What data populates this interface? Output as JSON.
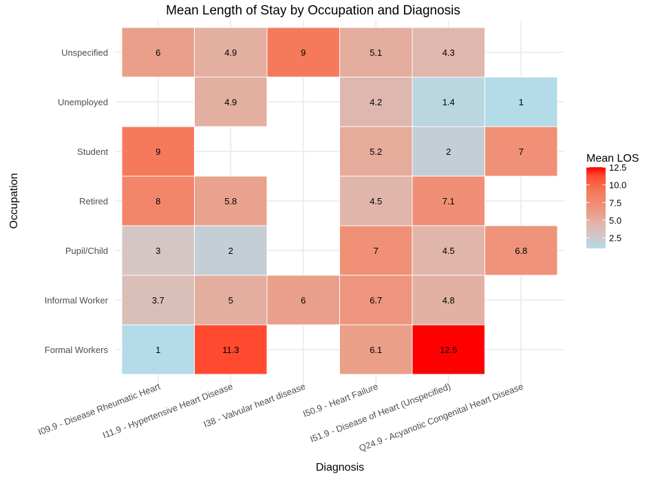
{
  "chart_data": {
    "type": "heatmap",
    "title": "Mean Length of Stay by Occupation and Diagnosis",
    "xlabel": "Diagnosis",
    "ylabel": "Occupation",
    "x_categories": [
      "I09.9 - Disease Rheumatic Heart",
      "I11.9 - Hypertensive Heart Disease",
      "I38 - Valvular heart disease",
      "I50.9 - Heart Failure",
      "I51.9 - Disease of Heart (Unspecified)",
      "Q24.9 - Acyanotic Congenital Heart Disease"
    ],
    "y_categories": [
      "Unspecified",
      "Unemployed",
      "Student",
      "Retired",
      "Pupil/Child",
      "Informal Worker",
      "Formal Workers"
    ],
    "values": [
      [
        6,
        4.9,
        9,
        5.1,
        4.3,
        null
      ],
      [
        null,
        4.9,
        null,
        4.2,
        1.4,
        1
      ],
      [
        9,
        null,
        null,
        5.2,
        2,
        7
      ],
      [
        8,
        5.8,
        null,
        4.5,
        7.1,
        null
      ],
      [
        3,
        2,
        null,
        7,
        4.5,
        6.8
      ],
      [
        3.7,
        5,
        6,
        6.7,
        4.8,
        null
      ],
      [
        1,
        11.3,
        null,
        6.1,
        12.5,
        null
      ]
    ],
    "legend": {
      "title": "Mean LOS",
      "ticks": [
        "12.5",
        "10.0",
        "7.5",
        "5.0",
        "2.5"
      ],
      "tick_values": [
        12.5,
        10,
        7.5,
        5,
        2.5
      ],
      "range": [
        1,
        12.5
      ],
      "placement": "right"
    },
    "colorscale": [
      [
        1,
        "#B3DBE8"
      ],
      [
        2,
        "#C5CED5"
      ],
      [
        3,
        "#D5C5C4"
      ],
      [
        4.5,
        "#E0B5AA"
      ],
      [
        6,
        "#EA9F8A"
      ],
      [
        7,
        "#F09077"
      ],
      [
        9,
        "#F57A5C"
      ],
      [
        11.3,
        "#FF4A30"
      ],
      [
        12.5,
        "#FF0000"
      ]
    ],
    "grid": true
  }
}
